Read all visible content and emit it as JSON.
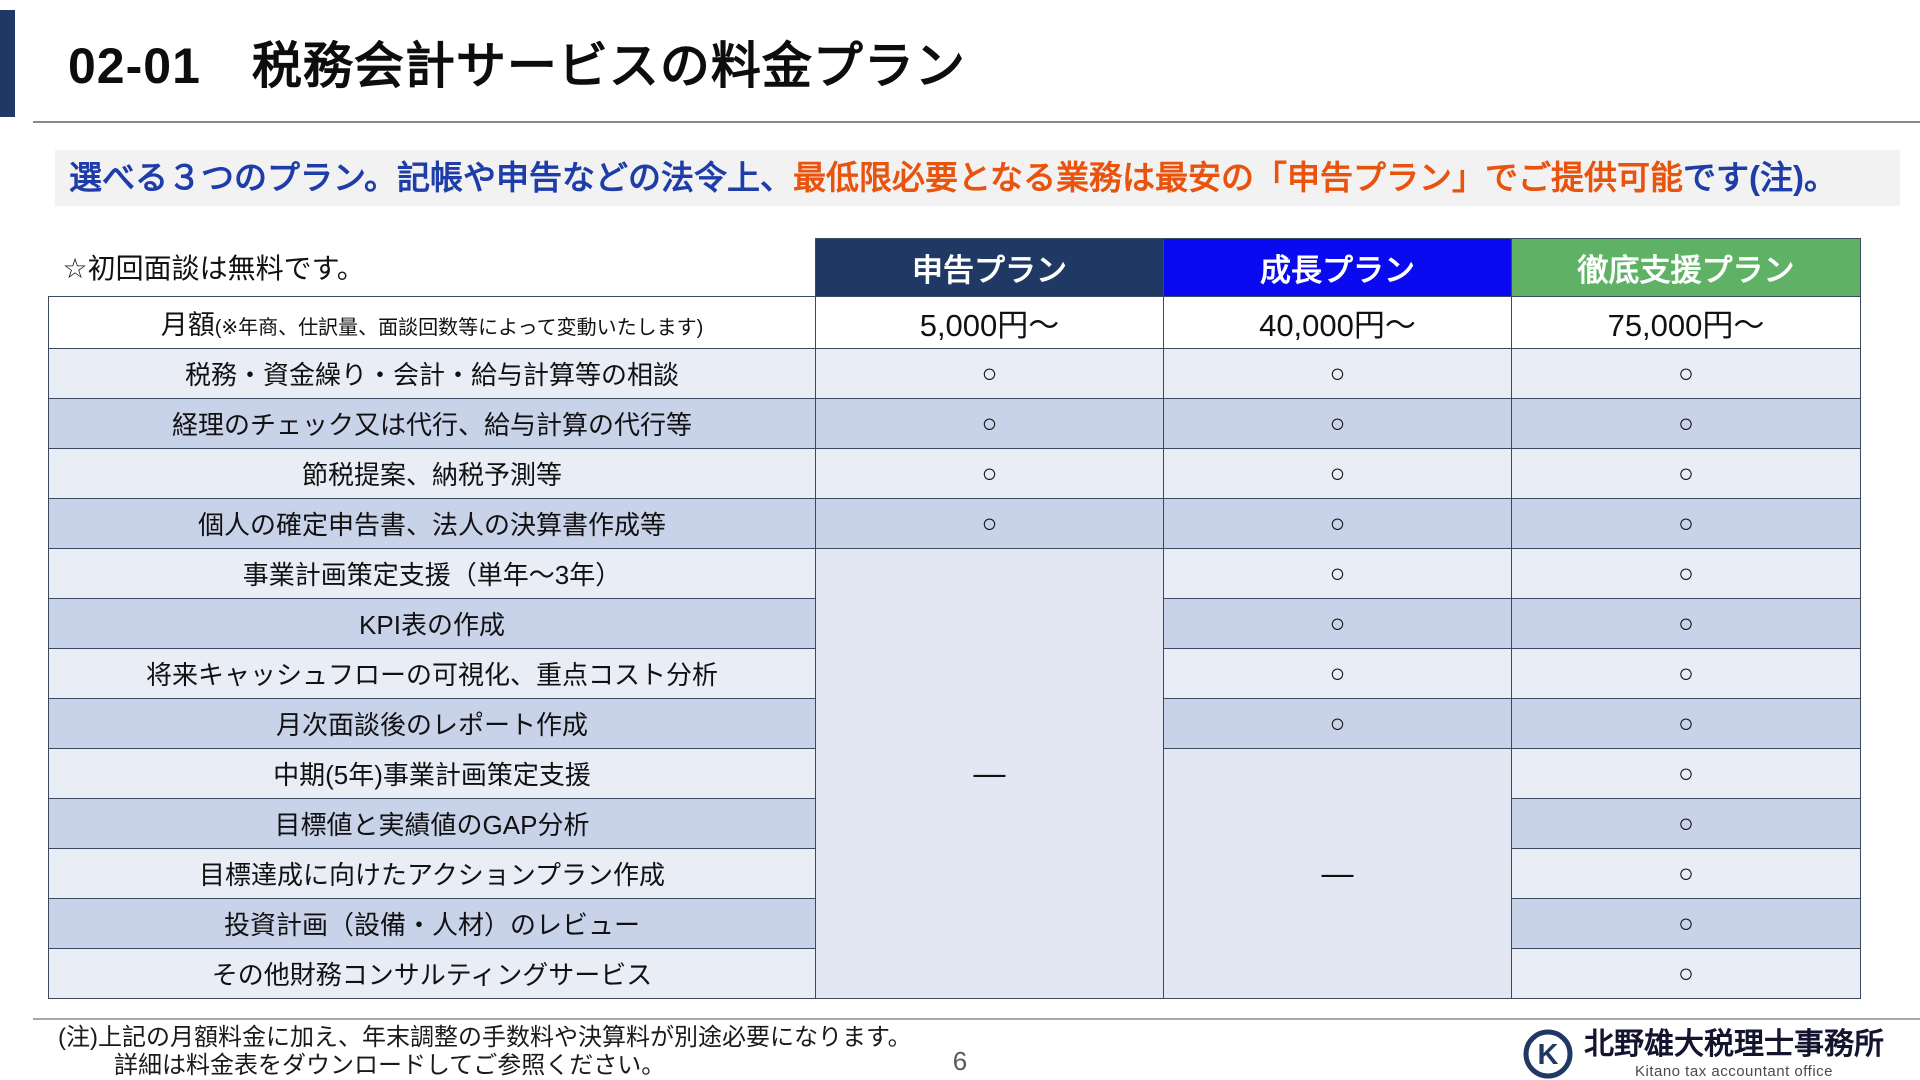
{
  "slide": {
    "title": "02-01　税務会計サービスの料金プラン",
    "page_number": "6"
  },
  "highlight": {
    "segments": [
      {
        "text": "選べる３つのプラン。記帳や申告などの法令上、",
        "color": "#1f3da8"
      },
      {
        "text": "最低限必要となる業務は最安の「申告プラン」でご提供可能",
        "color": "#e8530e"
      },
      {
        "text": "です(注)。",
        "color": "#1f3da8"
      }
    ]
  },
  "table": {
    "corner_note": "☆初回面談は無料です。",
    "plans": [
      {
        "label": "申告プラン",
        "color": "#203864"
      },
      {
        "label": "成長プラン",
        "color": "#0a0af0"
      },
      {
        "label": "徹底支援プラン",
        "color": "#5fb265"
      }
    ],
    "price_row": {
      "label_main": "月額",
      "label_note": "(※年商、仕訳量、面談回数等によって変動いたします)",
      "values": [
        "5,000円〜",
        "40,000円〜",
        "75,000円〜"
      ]
    },
    "included_mark": "○",
    "excluded_mark": "—",
    "rows": [
      {
        "label": "税務・資金繰り・会計・給与計算等の相談",
        "cells": [
          "○",
          "○",
          "○"
        ]
      },
      {
        "label": "経理のチェック又は代行、給与計算の代行等",
        "cells": [
          "○",
          "○",
          "○"
        ]
      },
      {
        "label": "節税提案、納税予測等",
        "cells": [
          "○",
          "○",
          "○"
        ]
      },
      {
        "label": "個人の確定申告書、法人の決算書作成等",
        "cells": [
          "○",
          "○",
          "○"
        ]
      },
      {
        "label": "事業計画策定支援（単年〜3年）",
        "cells": [
          {
            "merge": 9,
            "text": "—"
          },
          "○",
          "○"
        ]
      },
      {
        "label": "KPI表の作成",
        "cells": [
          null,
          "○",
          "○"
        ]
      },
      {
        "label": "将来キャッシュフローの可視化、重点コスト分析",
        "cells": [
          null,
          "○",
          "○"
        ]
      },
      {
        "label": "月次面談後のレポート作成",
        "cells": [
          null,
          "○",
          "○"
        ]
      },
      {
        "label": "中期(5年)事業計画策定支援",
        "cells": [
          null,
          {
            "merge": 5,
            "text": "—"
          },
          "○"
        ]
      },
      {
        "label": "目標値と実績値のGAP分析",
        "cells": [
          null,
          null,
          "○"
        ]
      },
      {
        "label": "目標達成に向けたアクションプラン作成",
        "cells": [
          null,
          null,
          "○"
        ]
      },
      {
        "label": "投資計画（設備・人材）のレビュー",
        "cells": [
          null,
          null,
          "○"
        ]
      },
      {
        "label": "その他財務コンサルティングサービス",
        "cells": [
          null,
          null,
          "○"
        ]
      }
    ]
  },
  "footer": {
    "note_line1": "(注)上記の月額料金に加え、年末調整の手数料や決算料が別途必要になります。",
    "note_line2": "詳細は料金表をダウンロードしてご参照ください。",
    "logo_text": "北野雄大税理士事務所",
    "logo_subtext": "Kitano tax accountant office"
  }
}
